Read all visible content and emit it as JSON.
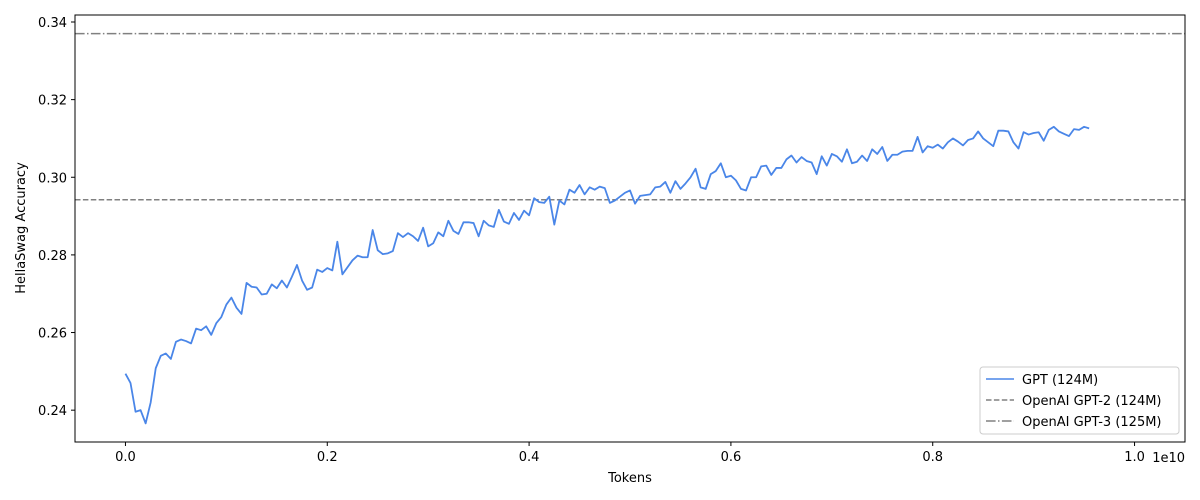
{
  "chart_data": {
    "type": "line",
    "title": "",
    "xlabel": "Tokens",
    "ylabel": "HellaSwag Accuracy",
    "x_offset_label": "1e10",
    "xlim": [
      -0.05,
      1.05
    ],
    "ylim": [
      0.2318,
      0.3418
    ],
    "x_ticks": [
      0.0,
      0.2,
      0.4,
      0.6,
      0.8,
      1.0
    ],
    "x_tick_labels": [
      "0.0",
      "0.2",
      "0.4",
      "0.6",
      "0.8",
      "1.0"
    ],
    "y_ticks": [
      0.24,
      0.26,
      0.28,
      0.3,
      0.32,
      0.34
    ],
    "y_tick_labels": [
      "0.24",
      "0.26",
      "0.28",
      "0.30",
      "0.32",
      "0.34"
    ],
    "grid": false,
    "legend_position": "bottom-right",
    "series": [
      {
        "name": "GPT (124M)",
        "color": "#4a86e8",
        "style": "solid",
        "points": [
          [
            0.0,
            0.2494
          ],
          [
            0.005,
            0.247
          ],
          [
            0.01,
            0.2396
          ],
          [
            0.015,
            0.24
          ],
          [
            0.02,
            0.2366
          ],
          [
            0.025,
            0.242
          ],
          [
            0.03,
            0.2508
          ],
          [
            0.035,
            0.254
          ],
          [
            0.04,
            0.2546
          ],
          [
            0.045,
            0.2532
          ],
          [
            0.05,
            0.2576
          ],
          [
            0.055,
            0.2582
          ],
          [
            0.06,
            0.2578
          ],
          [
            0.065,
            0.2572
          ],
          [
            0.07,
            0.261
          ],
          [
            0.075,
            0.2606
          ],
          [
            0.08,
            0.2616
          ],
          [
            0.085,
            0.2594
          ],
          [
            0.09,
            0.2624
          ],
          [
            0.095,
            0.264
          ],
          [
            0.1,
            0.2672
          ],
          [
            0.105,
            0.269
          ],
          [
            0.11,
            0.2664
          ],
          [
            0.115,
            0.2648
          ],
          [
            0.12,
            0.2728
          ],
          [
            0.125,
            0.2718
          ],
          [
            0.13,
            0.2716
          ],
          [
            0.135,
            0.2698
          ],
          [
            0.14,
            0.27
          ],
          [
            0.145,
            0.2724
          ],
          [
            0.15,
            0.2714
          ],
          [
            0.155,
            0.2734
          ],
          [
            0.16,
            0.2716
          ],
          [
            0.165,
            0.2744
          ],
          [
            0.17,
            0.2774
          ],
          [
            0.175,
            0.2734
          ],
          [
            0.18,
            0.271
          ],
          [
            0.185,
            0.2716
          ],
          [
            0.19,
            0.2762
          ],
          [
            0.195,
            0.2756
          ],
          [
            0.2,
            0.2766
          ],
          [
            0.205,
            0.276
          ],
          [
            0.21,
            0.2834
          ],
          [
            0.215,
            0.275
          ],
          [
            0.22,
            0.2768
          ],
          [
            0.225,
            0.2786
          ],
          [
            0.23,
            0.2798
          ],
          [
            0.235,
            0.2794
          ],
          [
            0.24,
            0.2794
          ],
          [
            0.245,
            0.2864
          ],
          [
            0.25,
            0.2812
          ],
          [
            0.255,
            0.2802
          ],
          [
            0.26,
            0.2804
          ],
          [
            0.265,
            0.281
          ],
          [
            0.27,
            0.2856
          ],
          [
            0.275,
            0.2846
          ],
          [
            0.28,
            0.2856
          ],
          [
            0.285,
            0.2848
          ],
          [
            0.29,
            0.2836
          ],
          [
            0.295,
            0.287
          ],
          [
            0.3,
            0.2822
          ],
          [
            0.305,
            0.283
          ],
          [
            0.31,
            0.2858
          ],
          [
            0.315,
            0.2848
          ],
          [
            0.32,
            0.2888
          ],
          [
            0.325,
            0.2862
          ],
          [
            0.33,
            0.2854
          ],
          [
            0.335,
            0.2884
          ],
          [
            0.34,
            0.2884
          ],
          [
            0.345,
            0.2882
          ],
          [
            0.35,
            0.2848
          ],
          [
            0.355,
            0.2888
          ],
          [
            0.36,
            0.2876
          ],
          [
            0.365,
            0.2872
          ],
          [
            0.37,
            0.2916
          ],
          [
            0.375,
            0.2886
          ],
          [
            0.38,
            0.288
          ],
          [
            0.385,
            0.2908
          ],
          [
            0.39,
            0.289
          ],
          [
            0.395,
            0.2914
          ],
          [
            0.4,
            0.2902
          ],
          [
            0.405,
            0.2946
          ],
          [
            0.41,
            0.2936
          ],
          [
            0.415,
            0.2934
          ],
          [
            0.42,
            0.295
          ],
          [
            0.425,
            0.2878
          ],
          [
            0.43,
            0.294
          ],
          [
            0.435,
            0.293
          ],
          [
            0.44,
            0.2968
          ],
          [
            0.445,
            0.296
          ],
          [
            0.45,
            0.298
          ],
          [
            0.455,
            0.2956
          ],
          [
            0.46,
            0.2974
          ],
          [
            0.465,
            0.2968
          ],
          [
            0.47,
            0.2976
          ],
          [
            0.475,
            0.2972
          ],
          [
            0.48,
            0.2934
          ],
          [
            0.485,
            0.294
          ],
          [
            0.49,
            0.295
          ],
          [
            0.495,
            0.296
          ],
          [
            0.5,
            0.2966
          ],
          [
            0.505,
            0.2932
          ],
          [
            0.51,
            0.2952
          ],
          [
            0.515,
            0.2954
          ],
          [
            0.52,
            0.2956
          ],
          [
            0.525,
            0.2974
          ],
          [
            0.53,
            0.2976
          ],
          [
            0.535,
            0.2988
          ],
          [
            0.54,
            0.296
          ],
          [
            0.545,
            0.299
          ],
          [
            0.55,
            0.297
          ],
          [
            0.555,
            0.2984
          ],
          [
            0.56,
            0.3
          ],
          [
            0.565,
            0.3022
          ],
          [
            0.57,
            0.2974
          ],
          [
            0.575,
            0.297
          ],
          [
            0.58,
            0.3008
          ],
          [
            0.585,
            0.3016
          ],
          [
            0.59,
            0.3036
          ],
          [
            0.595,
            0.3
          ],
          [
            0.6,
            0.3004
          ],
          [
            0.605,
            0.2992
          ],
          [
            0.61,
            0.297
          ],
          [
            0.615,
            0.2966
          ],
          [
            0.62,
            0.3
          ],
          [
            0.625,
            0.3
          ],
          [
            0.63,
            0.3028
          ],
          [
            0.635,
            0.303
          ],
          [
            0.64,
            0.3006
          ],
          [
            0.645,
            0.3024
          ],
          [
            0.65,
            0.3024
          ],
          [
            0.655,
            0.3046
          ],
          [
            0.66,
            0.3056
          ],
          [
            0.665,
            0.3038
          ],
          [
            0.67,
            0.3052
          ],
          [
            0.675,
            0.3042
          ],
          [
            0.68,
            0.3038
          ],
          [
            0.685,
            0.3008
          ],
          [
            0.69,
            0.3054
          ],
          [
            0.695,
            0.303
          ],
          [
            0.7,
            0.306
          ],
          [
            0.705,
            0.3054
          ],
          [
            0.71,
            0.304
          ],
          [
            0.715,
            0.3072
          ],
          [
            0.72,
            0.3036
          ],
          [
            0.725,
            0.304
          ],
          [
            0.73,
            0.3056
          ],
          [
            0.735,
            0.3042
          ],
          [
            0.74,
            0.3072
          ],
          [
            0.745,
            0.306
          ],
          [
            0.75,
            0.3078
          ],
          [
            0.755,
            0.3042
          ],
          [
            0.76,
            0.3058
          ],
          [
            0.765,
            0.3058
          ],
          [
            0.77,
            0.3066
          ],
          [
            0.775,
            0.3068
          ],
          [
            0.78,
            0.3068
          ],
          [
            0.785,
            0.3104
          ],
          [
            0.79,
            0.3064
          ],
          [
            0.795,
            0.308
          ],
          [
            0.8,
            0.3076
          ],
          [
            0.805,
            0.3084
          ],
          [
            0.81,
            0.3074
          ],
          [
            0.815,
            0.309
          ],
          [
            0.82,
            0.31
          ],
          [
            0.825,
            0.3092
          ],
          [
            0.83,
            0.3082
          ],
          [
            0.835,
            0.3096
          ],
          [
            0.84,
            0.31
          ],
          [
            0.845,
            0.3118
          ],
          [
            0.85,
            0.31
          ],
          [
            0.855,
            0.309
          ],
          [
            0.86,
            0.308
          ],
          [
            0.865,
            0.312
          ],
          [
            0.87,
            0.312
          ],
          [
            0.875,
            0.3118
          ],
          [
            0.88,
            0.309
          ],
          [
            0.885,
            0.3074
          ],
          [
            0.89,
            0.3116
          ],
          [
            0.895,
            0.311
          ],
          [
            0.9,
            0.3114
          ],
          [
            0.905,
            0.3116
          ],
          [
            0.91,
            0.3094
          ],
          [
            0.915,
            0.3122
          ],
          [
            0.92,
            0.313
          ],
          [
            0.925,
            0.3118
          ],
          [
            0.93,
            0.3112
          ],
          [
            0.935,
            0.3106
          ],
          [
            0.94,
            0.3124
          ],
          [
            0.945,
            0.3122
          ],
          [
            0.95,
            0.313
          ],
          [
            0.955,
            0.3126
          ]
        ]
      },
      {
        "name": "OpenAI GPT-2 (124M)",
        "color": "#808080",
        "style": "dashed",
        "y": 0.2942
      },
      {
        "name": "OpenAI GPT-3 (125M)",
        "color": "#808080",
        "style": "dashdot",
        "y": 0.337
      }
    ]
  }
}
